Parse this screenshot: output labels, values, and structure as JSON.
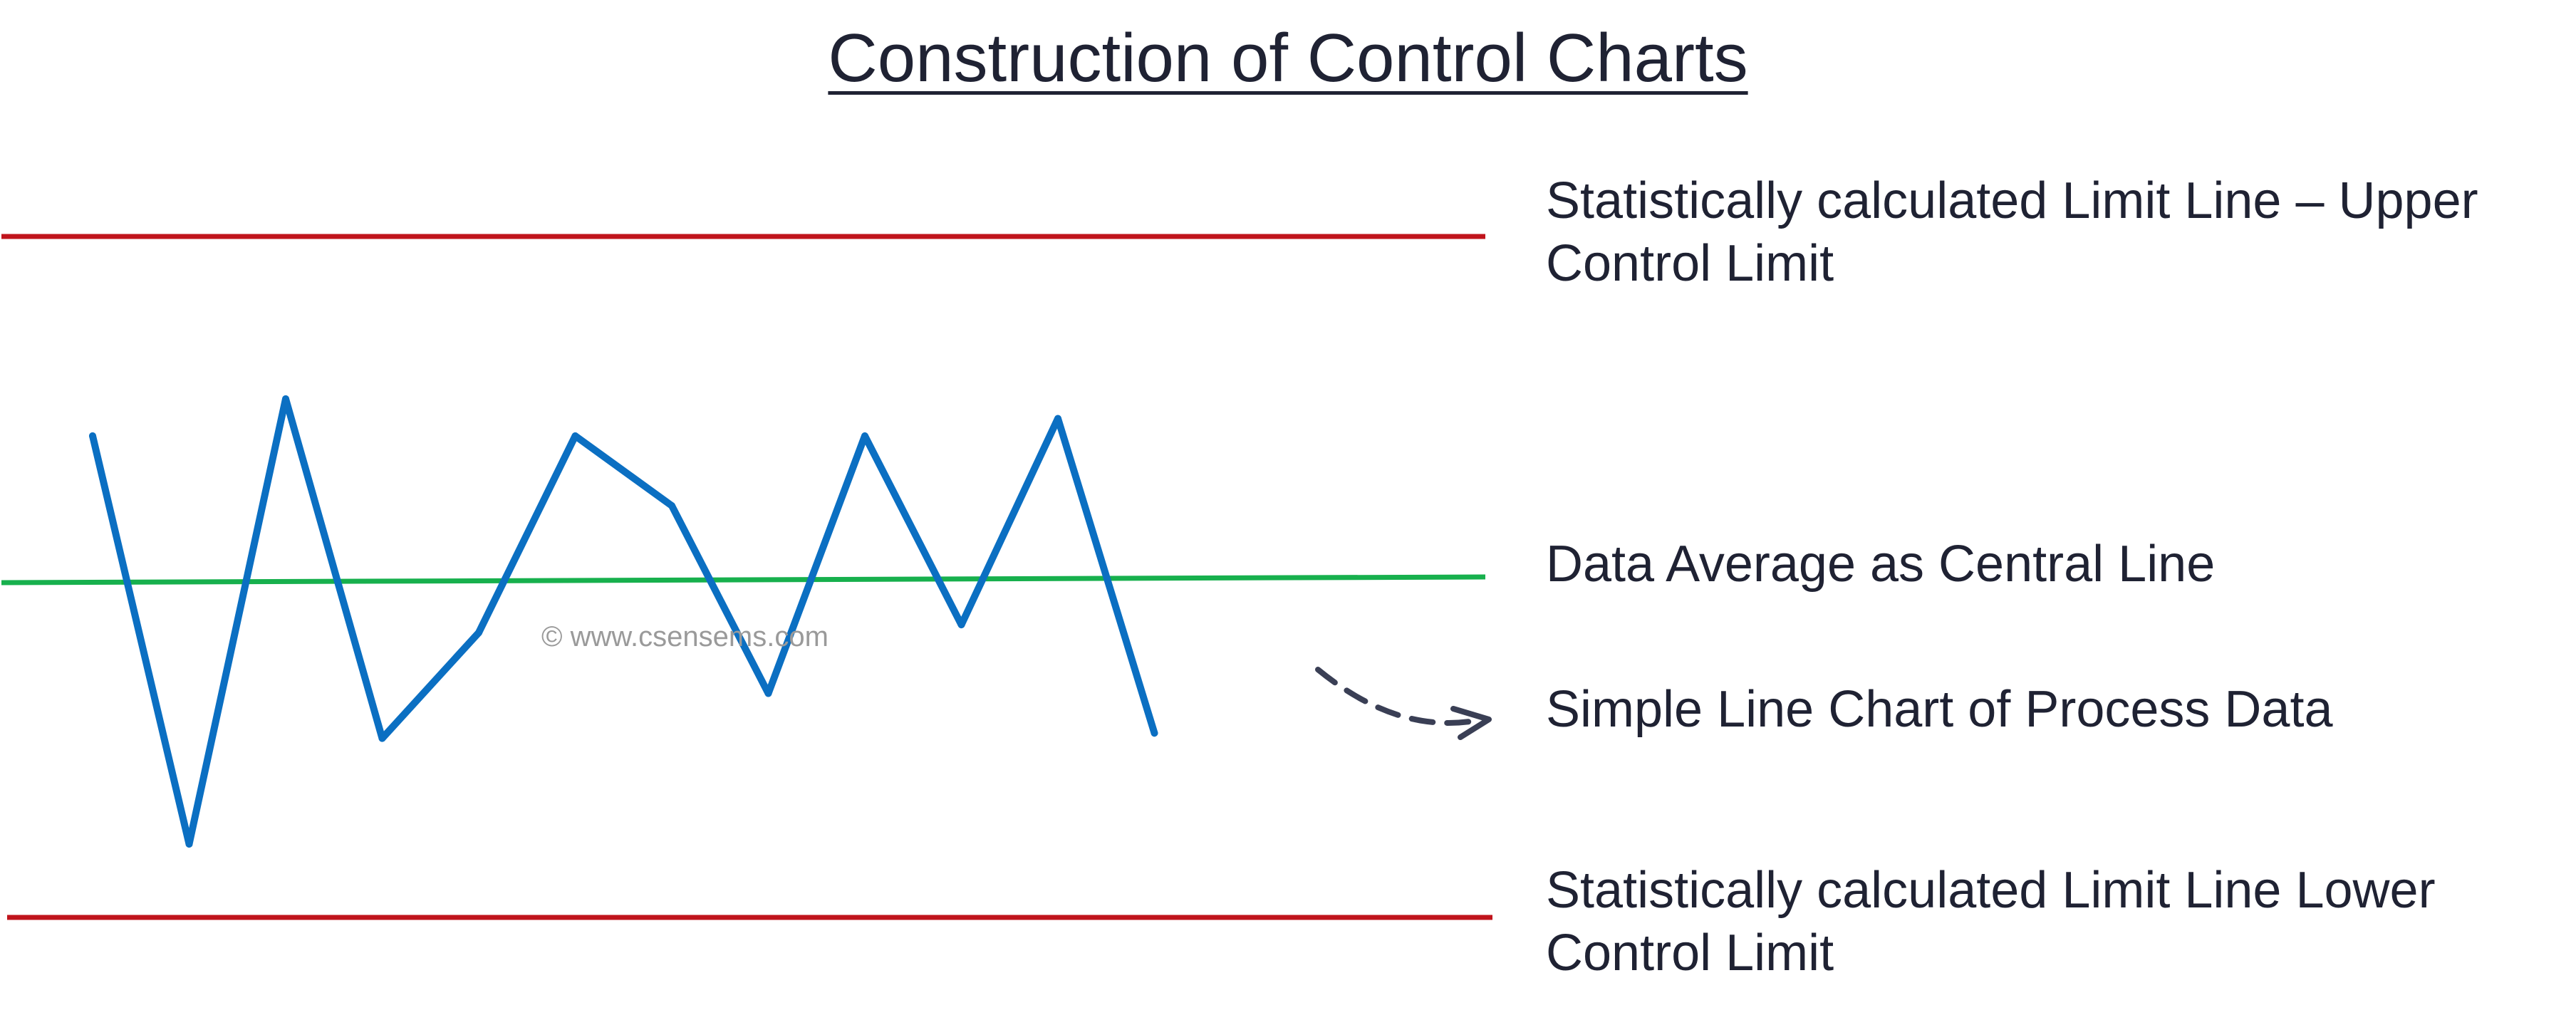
{
  "title": "Construction of Control Charts",
  "labels": {
    "ucl": [
      "Statistically calculated Limit Line – Upper",
      "Control Limit"
    ],
    "center": [
      "Data Average as Central Line"
    ],
    "process": [
      "Simple Line Chart of Process Data"
    ],
    "lcl": [
      "Statistically calculated Limit Line Lower",
      "Control Limit"
    ]
  },
  "watermark": "© www.csensems.com",
  "colors": {
    "limit_line": "#c0141c",
    "center_line": "#17b04d",
    "process_line": "#0b6fc2",
    "pointer_arrow": "#3a3f55",
    "text": "#1f2233"
  },
  "process_data": [
    0.66,
    -1.0,
    0.83,
    -0.6,
    -0.2,
    0.66,
    0.34,
    -0.43,
    0.66,
    -0.17,
    0.74,
    -0.58
  ]
}
